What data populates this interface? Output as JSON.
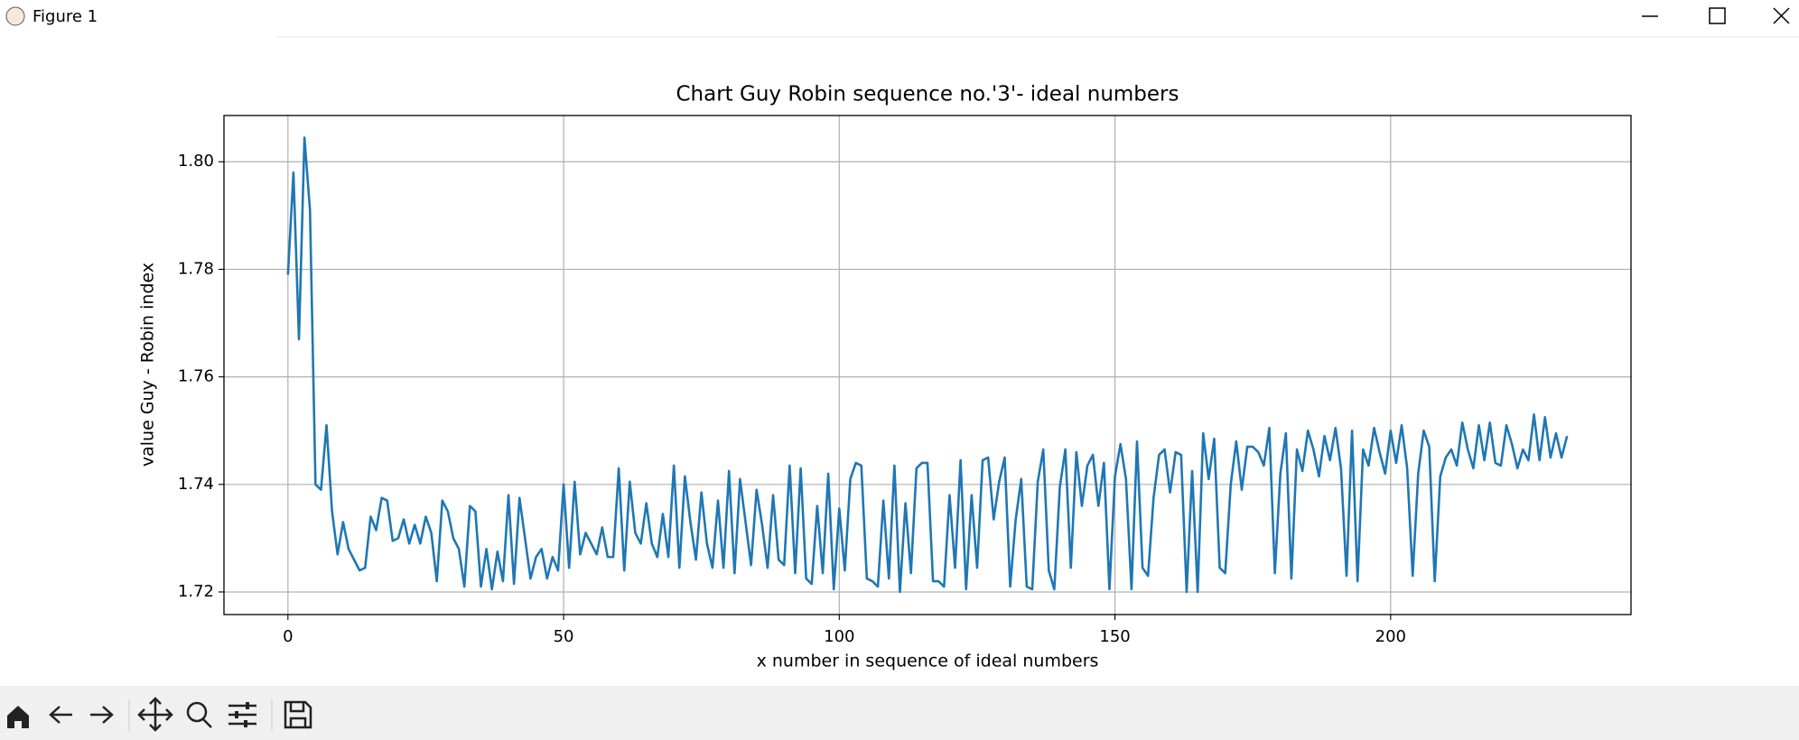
{
  "window": {
    "title": "Figure 1"
  },
  "chart_data": {
    "type": "line",
    "title": "Chart Guy Robin sequence no.'3'- ideal numbers",
    "x_label": "x number in sequence of ideal numbers",
    "y_label": "value Guy - Robin index",
    "color": "#1f77b4",
    "grid": true,
    "xlim": [
      -11.6,
      243.6
    ],
    "xticks": [
      0,
      50,
      100,
      150,
      200
    ],
    "ylim": [
      1.7158,
      1.8086
    ],
    "yticks": [
      1.72,
      1.74,
      1.76,
      1.78,
      {
        "value": 1.8,
        "label": "1.80"
      }
    ],
    "x": [
      0,
      1,
      2,
      3,
      4,
      5,
      6,
      7,
      8,
      9,
      10,
      11,
      12,
      13,
      14,
      15,
      16,
      17,
      18,
      19,
      20,
      21,
      22,
      23,
      24,
      25,
      26,
      27,
      28,
      29,
      30,
      31,
      32,
      33,
      34,
      35,
      36,
      37,
      38,
      39,
      40,
      41,
      42,
      43,
      44,
      45,
      46,
      47,
      48,
      49,
      50,
      51,
      52,
      53,
      54,
      55,
      56,
      57,
      58,
      59,
      60,
      61,
      62,
      63,
      64,
      65,
      66,
      67,
      68,
      69,
      70,
      71,
      72,
      73,
      74,
      75,
      76,
      77,
      78,
      79,
      80,
      81,
      82,
      83,
      84,
      85,
      86,
      87,
      88,
      89,
      90,
      91,
      92,
      93,
      94,
      95,
      96,
      97,
      98,
      99,
      100,
      101,
      102,
      103,
      104,
      105,
      106,
      107,
      108,
      109,
      110,
      111,
      112,
      113,
      114,
      115,
      116,
      117,
      118,
      119,
      120,
      121,
      122,
      123,
      124,
      125,
      126,
      127,
      128,
      129,
      130,
      131,
      132,
      133,
      134,
      135,
      136,
      137,
      138,
      139,
      140,
      141,
      142,
      143,
      144,
      145,
      146,
      147,
      148,
      149,
      150,
      151,
      152,
      153,
      154,
      155,
      156,
      157,
      158,
      159,
      160,
      161,
      162,
      163,
      164,
      165,
      166,
      167,
      168,
      169,
      170,
      171,
      172,
      173,
      174,
      175,
      176,
      177,
      178,
      179,
      180,
      181,
      182,
      183,
      184,
      185,
      186,
      187,
      188,
      189,
      190,
      191,
      192,
      193,
      194,
      195,
      196,
      197,
      198,
      199,
      200,
      201,
      202,
      203,
      204,
      205,
      206,
      207,
      208,
      209,
      210,
      211,
      212,
      213,
      214,
      215,
      216,
      217,
      218,
      219,
      220,
      221,
      222,
      223,
      224,
      225,
      226,
      227,
      228,
      229,
      230,
      231,
      232
    ],
    "values": [
      1.779,
      1.798,
      1.767,
      1.8045,
      1.791,
      1.74,
      1.739,
      1.751,
      1.735,
      1.727,
      1.733,
      1.728,
      1.726,
      1.724,
      1.7245,
      1.734,
      1.7315,
      1.7375,
      1.737,
      1.7295,
      1.73,
      1.7335,
      1.729,
      1.7325,
      1.729,
      1.734,
      1.731,
      1.722,
      1.737,
      1.735,
      1.73,
      1.728,
      1.721,
      1.736,
      1.735,
      1.721,
      1.728,
      1.7205,
      1.7275,
      1.722,
      1.738,
      1.7215,
      1.7375,
      1.73,
      1.7225,
      1.7265,
      1.728,
      1.7225,
      1.7265,
      1.724,
      1.74,
      1.7245,
      1.7405,
      1.727,
      1.731,
      1.729,
      1.727,
      1.732,
      1.7265,
      1.7265,
      1.743,
      1.724,
      1.7405,
      1.731,
      1.729,
      1.7365,
      1.729,
      1.7265,
      1.7345,
      1.7265,
      1.7435,
      1.7245,
      1.7415,
      1.733,
      1.726,
      1.7385,
      1.729,
      1.7245,
      1.737,
      1.7245,
      1.7425,
      1.7235,
      1.741,
      1.733,
      1.725,
      1.739,
      1.7325,
      1.7245,
      1.738,
      1.726,
      1.725,
      1.7435,
      1.7235,
      1.743,
      1.7225,
      1.7215,
      1.736,
      1.7235,
      1.742,
      1.7205,
      1.7355,
      1.724,
      1.741,
      1.744,
      1.7435,
      1.7225,
      1.722,
      1.721,
      1.737,
      1.7225,
      1.7435,
      1.72,
      1.7365,
      1.7235,
      1.743,
      1.744,
      1.744,
      1.722,
      1.722,
      1.721,
      1.738,
      1.7245,
      1.7445,
      1.7205,
      1.738,
      1.7245,
      1.7445,
      1.745,
      1.7335,
      1.7405,
      1.745,
      1.721,
      1.7335,
      1.741,
      1.721,
      1.7205,
      1.7405,
      1.7465,
      1.724,
      1.7205,
      1.7395,
      1.7465,
      1.7245,
      1.746,
      1.736,
      1.7435,
      1.7455,
      1.736,
      1.744,
      1.7205,
      1.7415,
      1.7475,
      1.741,
      1.7205,
      1.748,
      1.7245,
      1.723,
      1.7375,
      1.7455,
      1.7465,
      1.7385,
      1.746,
      1.7455,
      1.72,
      1.7425,
      1.72,
      1.7495,
      1.741,
      1.7485,
      1.7245,
      1.7235,
      1.74,
      1.748,
      1.739,
      1.747,
      1.747,
      1.746,
      1.7435,
      1.7505,
      1.7235,
      1.742,
      1.7495,
      1.7225,
      1.7465,
      1.7425,
      1.75,
      1.7465,
      1.7415,
      1.749,
      1.7445,
      1.7505,
      1.743,
      1.723,
      1.75,
      1.722,
      1.7465,
      1.7435,
      1.7505,
      1.746,
      1.742,
      1.75,
      1.744,
      1.751,
      1.743,
      1.723,
      1.742,
      1.75,
      1.747,
      1.722,
      1.7415,
      1.745,
      1.7465,
      1.7435,
      1.7515,
      1.7465,
      1.743,
      1.751,
      1.7445,
      1.7515,
      1.744,
      1.7435,
      1.751,
      1.7475,
      1.743,
      1.7465,
      1.7445,
      1.753,
      1.7445,
      1.7525,
      1.745,
      1.7495,
      1.745,
      1.749
    ]
  }
}
